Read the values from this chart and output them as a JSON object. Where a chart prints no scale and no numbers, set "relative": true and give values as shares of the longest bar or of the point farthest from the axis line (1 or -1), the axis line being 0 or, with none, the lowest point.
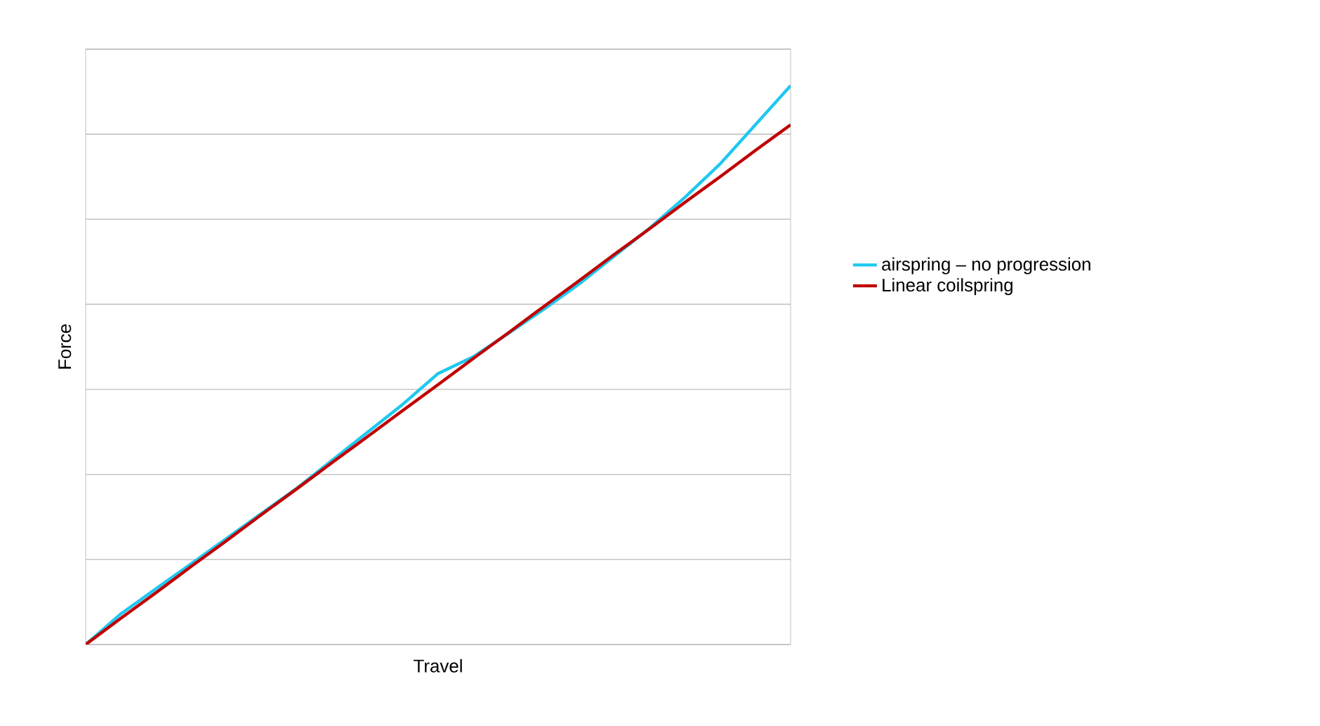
{
  "chart_data": {
    "type": "line",
    "xlabel": "Travel",
    "ylabel": "Force",
    "relative": true,
    "grid": "y",
    "legend": "right",
    "categories": [
      null,
      null,
      null,
      null,
      null,
      null,
      null,
      null,
      null,
      null,
      null,
      null,
      null,
      null,
      null,
      null,
      null,
      null,
      null,
      null,
      null
    ],
    "series": [
      {
        "name": "airspring – no progression",
        "color": "#1ec8f0",
        "values": [
          0,
          0.055,
          0.1,
          0.145,
          0.19,
          0.235,
          0.28,
          0.33,
          0.38,
          0.43,
          0.485,
          0.515,
          0.557,
          0.6,
          0.645,
          0.695,
          0.745,
          0.8,
          0.86,
          0.93,
          1
        ]
      },
      {
        "name": "Linear coilspring",
        "color": "#c00000",
        "values": [
          0,
          0.047,
          0.093,
          0.14,
          0.186,
          0.233,
          0.279,
          0.326,
          0.372,
          0.419,
          0.465,
          0.512,
          0.558,
          0.605,
          0.651,
          0.698,
          0.744,
          0.791,
          0.837,
          0.884,
          0.93
        ]
      }
    ]
  }
}
